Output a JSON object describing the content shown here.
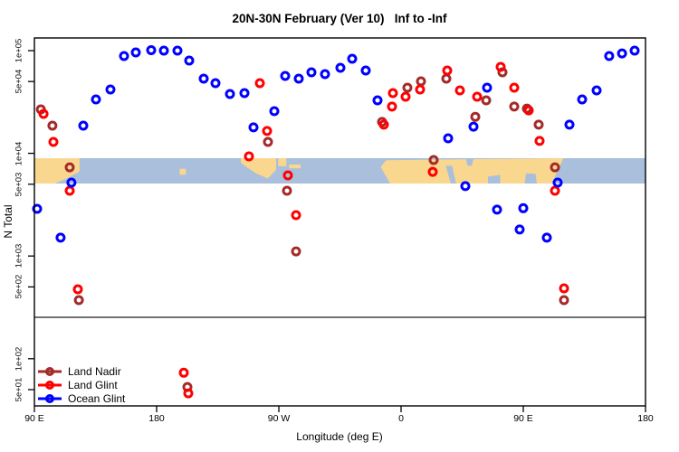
{
  "title": "20N-30N February (Ver 10)   Inf to -Inf",
  "chart_data": {
    "type": "scatter",
    "title": "20N-30N February (Ver 10)   Inf to -Inf",
    "xlabel": "Longitude (deg E)",
    "ylabel": "N Total",
    "x_axis": {
      "range_deg_east_extended": [
        90,
        540
      ],
      "ticks": [
        {
          "lon": 90,
          "label": "90 E"
        },
        {
          "lon": 180,
          "label": "180"
        },
        {
          "lon": 270,
          "label": "90 W"
        },
        {
          "lon": 360,
          "label": "0"
        },
        {
          "lon": 450,
          "label": "90 E"
        },
        {
          "lon": 540,
          "label": "180"
        }
      ]
    },
    "y_axis": {
      "scale": "log",
      "range": [
        40,
        120000
      ],
      "ticks": [
        {
          "v": 100000,
          "label": "1e+05"
        },
        {
          "v": 50000,
          "label": "5e+04"
        },
        {
          "v": 10000,
          "label": "1e+04"
        },
        {
          "v": 5000,
          "label": "5e+03"
        },
        {
          "v": 1000,
          "label": "1e+03"
        },
        {
          "v": 500,
          "label": "5e+02"
        },
        {
          "v": 100,
          "label": "1e+02"
        },
        {
          "v": 50,
          "label": "5e+01"
        }
      ]
    },
    "ref_line_y": 253,
    "map_band": {
      "top_value": 8970,
      "bottom_value": 5080,
      "ocean_color": "#A9BFDB",
      "land_color": "#FAD78E",
      "land_polygons": [
        [
          [
            90,
            0
          ],
          [
            123.3,
            0
          ],
          [
            123.3,
            0.52
          ],
          [
            114,
            0.8
          ],
          [
            105,
            1
          ],
          [
            90,
            1
          ]
        ],
        [
          [
            197,
            0.42
          ],
          [
            201.5,
            0.42
          ],
          [
            201.5,
            0.65
          ],
          [
            197,
            0.65
          ]
        ],
        [
          [
            242,
            0
          ],
          [
            268,
            0
          ],
          [
            268,
            0.45
          ],
          [
            262,
            0.8
          ],
          [
            254,
            0.62
          ],
          [
            247,
            0.38
          ],
          [
            242,
            0.18
          ]
        ],
        [
          [
            269.5,
            0
          ],
          [
            275.5,
            0
          ],
          [
            275.5,
            0.32
          ],
          [
            269.5,
            0.32
          ]
        ],
        [
          [
            277.5,
            0.25
          ],
          [
            286,
            0.25
          ],
          [
            286,
            0.4
          ],
          [
            277.5,
            0.4
          ]
        ],
        [
          [
            345,
            0.35
          ],
          [
            349,
            0.08
          ],
          [
            479.5,
            0
          ],
          [
            471,
            1
          ],
          [
            352,
            1
          ]
        ]
      ],
      "ocean_notch_polygons": [
        [
          [
            393,
            0.3
          ],
          [
            396.5,
            1
          ],
          [
            400.5,
            1
          ],
          [
            397.5,
            0.3
          ]
        ],
        [
          [
            407.5,
            0
          ],
          [
            413.5,
            0
          ],
          [
            412,
            0.3
          ],
          [
            409,
            0.3
          ]
        ],
        [
          [
            424,
            0.72
          ],
          [
            433,
            0.66
          ],
          [
            433,
            1
          ],
          [
            424,
            1
          ]
        ],
        [
          [
            452,
            0.6
          ],
          [
            459,
            0.62
          ],
          [
            460,
            1
          ],
          [
            451,
            1
          ]
        ]
      ]
    },
    "series": [
      {
        "name": "Land Nadir",
        "color": "#A52A2A",
        "points": [
          [
            94.7,
            26800
          ],
          [
            103.3,
            18600
          ],
          [
            116,
            7300
          ],
          [
            122.7,
            372
          ],
          [
            202.7,
            53
          ],
          [
            262,
            12900
          ],
          [
            276,
            4320
          ],
          [
            282.7,
            1110
          ],
          [
            346,
            20200
          ],
          [
            364.7,
            43600
          ],
          [
            374.7,
            50200
          ],
          [
            384,
            8600
          ],
          [
            393.3,
            53300
          ],
          [
            414.7,
            22700
          ],
          [
            422.7,
            32800
          ],
          [
            434.7,
            61500
          ],
          [
            443.3,
            28500
          ],
          [
            452.7,
            27300
          ],
          [
            461.3,
            19000
          ],
          [
            473.3,
            7300
          ],
          [
            480,
            372
          ]
        ]
      },
      {
        "name": "Land Glint",
        "color": "#FF0000",
        "points": [
          [
            96.7,
            24200
          ],
          [
            104,
            12900
          ],
          [
            116,
            4320
          ],
          [
            122,
            474
          ],
          [
            200,
            73
          ],
          [
            203.3,
            46
          ],
          [
            248,
            9330
          ],
          [
            256,
            48200
          ],
          [
            261.3,
            16500
          ],
          [
            276.7,
            6100
          ],
          [
            282.7,
            2500
          ],
          [
            347.3,
            19000
          ],
          [
            353.3,
            28500
          ],
          [
            354,
            38600
          ],
          [
            363.3,
            35600
          ],
          [
            374,
            41800
          ],
          [
            383.3,
            6600
          ],
          [
            394,
            64000
          ],
          [
            403.3,
            41000
          ],
          [
            416,
            35600
          ],
          [
            433.3,
            69500
          ],
          [
            443.3,
            43600
          ],
          [
            454,
            26200
          ],
          [
            462,
            13200
          ],
          [
            473.3,
            4320
          ],
          [
            480,
            484
          ]
        ]
      },
      {
        "name": "Ocean Glint",
        "color": "#0000FF",
        "points": [
          [
            92,
            2880
          ],
          [
            109.3,
            1510
          ],
          [
            117.3,
            5190
          ],
          [
            126,
            18600
          ],
          [
            135.3,
            33500
          ],
          [
            146,
            41800
          ],
          [
            156,
            88500
          ],
          [
            164.7,
            96000
          ],
          [
            176,
            101000
          ],
          [
            185.3,
            100000
          ],
          [
            195.3,
            100000
          ],
          [
            204,
            80000
          ],
          [
            214.7,
            53300
          ],
          [
            223.3,
            48200
          ],
          [
            234,
            37800
          ],
          [
            244.7,
            38600
          ],
          [
            251.3,
            17900
          ],
          [
            266.7,
            25700
          ],
          [
            274.7,
            56700
          ],
          [
            284.7,
            53300
          ],
          [
            294,
            61500
          ],
          [
            304,
            59000
          ],
          [
            315.3,
            68100
          ],
          [
            324,
            83400
          ],
          [
            334,
            64000
          ],
          [
            342.7,
            32800
          ],
          [
            394.7,
            14000
          ],
          [
            407.3,
            4790
          ],
          [
            413.3,
            18200
          ],
          [
            423.3,
            43600
          ],
          [
            430.7,
            2830
          ],
          [
            447.3,
            1810
          ],
          [
            450,
            2920
          ],
          [
            467.3,
            1510
          ],
          [
            475.3,
            5190
          ],
          [
            484,
            19000
          ],
          [
            493.3,
            33500
          ],
          [
            504,
            41000
          ],
          [
            513.3,
            88500
          ],
          [
            522.7,
            94000
          ],
          [
            532,
            100000
          ]
        ]
      }
    ],
    "legend_position": "bottom-left",
    "grid": false
  },
  "legend": {
    "items": [
      {
        "label": "Land Nadir",
        "color": "#A52A2A"
      },
      {
        "label": "Land Glint",
        "color": "#FF0000"
      },
      {
        "label": "Ocean Glint",
        "color": "#0000FF"
      }
    ]
  }
}
